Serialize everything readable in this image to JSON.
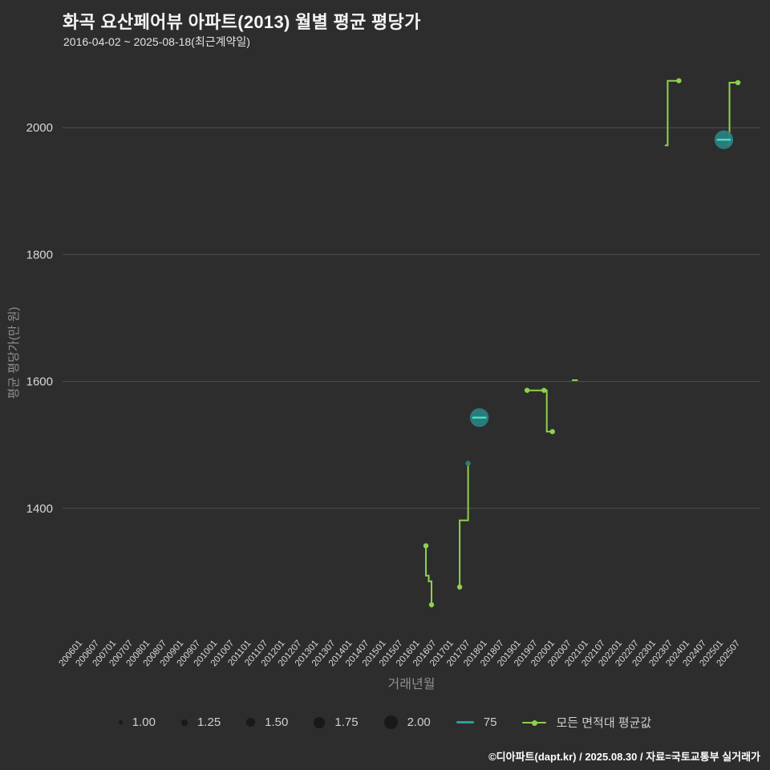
{
  "colors": {
    "background": "#2d2d2d",
    "grid": "#4f4f4f",
    "tick_text": "#d8d8d8",
    "axis_title": "#8f8f8f",
    "green": "#8ed14e",
    "teal": "#2a7f7f",
    "teal_dash": "#45e0c8",
    "teal_line": "#2f9e96",
    "legend_dot": "#191919",
    "title_text": "#f4f4f4"
  },
  "chart_data": {
    "type": "line",
    "title": "화곡 요산페어뷰 아파트(2013) 월별 평균 평당가",
    "subtitle": "2016-04-02 ~ 2025-08-18(최근계약일)",
    "xlabel": "거래년월",
    "ylabel": "평균 평당가(만 원)",
    "ylim": [
      1200,
      2090
    ],
    "yticks": [
      1400,
      1600,
      1800,
      2000
    ],
    "xticks": [
      "200601",
      "200607",
      "200701",
      "200707",
      "200801",
      "200807",
      "200901",
      "200907",
      "201001",
      "201007",
      "201101",
      "201107",
      "201201",
      "201207",
      "201301",
      "201307",
      "201401",
      "201407",
      "201501",
      "201507",
      "201601",
      "201607",
      "201701",
      "201707",
      "201801",
      "201807",
      "201901",
      "201907",
      "202001",
      "202007",
      "202101",
      "202107",
      "202201",
      "202207",
      "202301",
      "202307",
      "202401",
      "202407",
      "202501",
      "202507"
    ],
    "grid": true,
    "legend_position": "bottom",
    "series": [
      {
        "name": "모든 면적대 평균값",
        "type": "step-line",
        "color_key": "green",
        "segments": [
          {
            "points": [
              [
                "201604",
                1341
              ],
              [
                "201604",
                1294
              ],
              [
                "201605",
                1294
              ],
              [
                "201605",
                1285
              ],
              [
                "201606",
                1285
              ],
              [
                "201606",
                1248
              ]
            ],
            "dots": [
              {
                "x": "201604",
                "y": 1341,
                "size": 1.0
              },
              {
                "x": "201606",
                "y": 1248,
                "size": 1.0
              }
            ]
          },
          {
            "points": [
              [
                "201704",
                1276
              ],
              [
                "201704",
                1381
              ],
              [
                "201707",
                1381
              ],
              [
                "201707",
                1471
              ]
            ],
            "dots": [
              {
                "x": "201704",
                "y": 1276,
                "size": 1.0
              }
            ]
          },
          {
            "points": [
              [
                "201904",
                1586
              ],
              [
                "201911",
                1586
              ],
              [
                "201911",
                1521
              ],
              [
                "202001",
                1521
              ]
            ],
            "dots": [
              {
                "x": "201904",
                "y": 1586,
                "size": 1.0
              },
              {
                "x": "201910",
                "y": 1586,
                "size": 1.0
              },
              {
                "x": "202001",
                "y": 1521,
                "size": 1.0
              }
            ]
          },
          {
            "points": [
              [
                "202008",
                1602
              ],
              [
                "202010",
                1602
              ]
            ],
            "dots": []
          },
          {
            "points": [
              [
                "202305",
                1972
              ],
              [
                "202306",
                1972
              ],
              [
                "202306",
                2074
              ],
              [
                "202310",
                2074
              ]
            ],
            "dots": [
              {
                "x": "202310",
                "y": 2074,
                "size": 1.0
              }
            ]
          },
          {
            "points": [
              [
                "202503",
                1974
              ],
              [
                "202504",
                1974
              ],
              [
                "202504",
                2071
              ],
              [
                "202507",
                2071
              ]
            ],
            "dots": [
              {
                "x": "202507",
                "y": 2071,
                "size": 1.0
              }
            ]
          }
        ]
      },
      {
        "name": "75",
        "type": "bubble",
        "color_key": "teal",
        "markers": [
          {
            "x": "201707",
            "y": 1471,
            "size": 1.0,
            "dash": false
          },
          {
            "x": "201711",
            "y": 1543,
            "size": 2.0,
            "dash": true
          },
          {
            "x": "202502",
            "y": 1981,
            "size": 2.0,
            "dash": true
          }
        ]
      }
    ]
  },
  "legend": {
    "sizes": [
      {
        "label": "1.00"
      },
      {
        "label": "1.25"
      },
      {
        "label": "1.50"
      },
      {
        "label": "1.75"
      },
      {
        "label": "2.00"
      }
    ],
    "series": [
      {
        "label": "75",
        "key": "teal"
      },
      {
        "label": "모든 면적대 평균값",
        "key": "green"
      }
    ]
  },
  "footer": {
    "credit": "©디아파트(dapt.kr) / 2025.08.30 / 자료=국토교통부 실거래가"
  }
}
